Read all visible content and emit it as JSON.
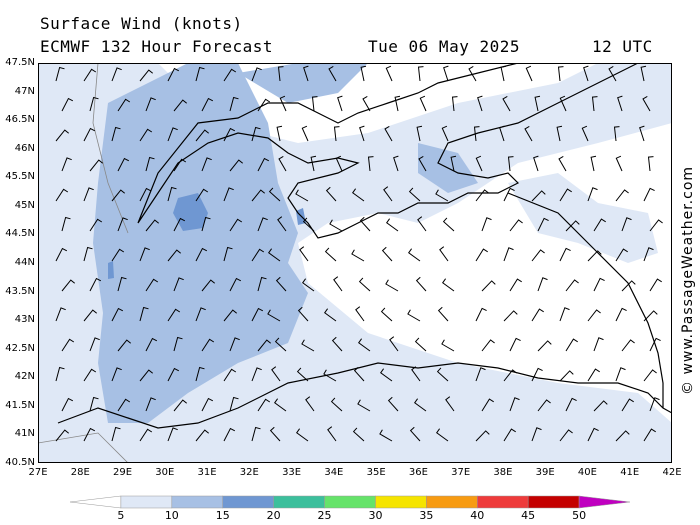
{
  "header": {
    "line1": "Surface Wind (knots)",
    "model_line": "ECMWF 132 Hour Forecast",
    "date_line": "Tue 06 May 2025",
    "time_line": "12 UTC"
  },
  "credit": "© www.PassageWeather.com",
  "lat_labels": [
    "47.5N",
    "47N",
    "46.5N",
    "46N",
    "45.5N",
    "45N",
    "44.5N",
    "44N",
    "43.5N",
    "43N",
    "42.5N",
    "42N",
    "41.5N",
    "41N",
    "40.5N"
  ],
  "lon_labels": [
    "27E",
    "28E",
    "29E",
    "30E",
    "31E",
    "32E",
    "33E",
    "34E",
    "35E",
    "36E",
    "37E",
    "38E",
    "39E",
    "40E",
    "41E",
    "42E"
  ],
  "legend": {
    "ticks": [
      "5",
      "10",
      "15",
      "20",
      "25",
      "30",
      "35",
      "40",
      "45",
      "50"
    ],
    "colors": [
      "#ffffff",
      "#dfe8f6",
      "#a7c0e4",
      "#6f97d2",
      "#3cbf9c",
      "#66e36a",
      "#f5e400",
      "#f79b12",
      "#ee3b3b",
      "#c40000",
      "#c000c0"
    ]
  },
  "colors": {
    "water_base": "#ffffff",
    "band_5_10": "#dfe8f6",
    "band_10_15": "#a7c0e4",
    "band_15_20": "#6f97d2",
    "coast": "#000000",
    "border": "#888888"
  }
}
